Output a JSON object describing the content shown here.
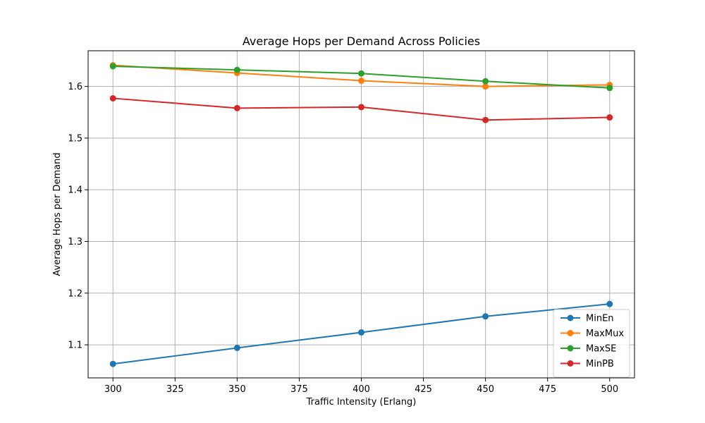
{
  "chart_data": {
    "type": "line",
    "title": "Average Hops per Demand Across Policies",
    "xlabel": "Traffic Intensity (Erlang)",
    "ylabel": "Average Hops per Demand",
    "x": [
      300,
      350,
      400,
      450,
      500
    ],
    "xlim": [
      290,
      510
    ],
    "ylim": [
      1.036,
      1.669
    ],
    "xticks": [
      300,
      325,
      350,
      375,
      400,
      425,
      450,
      475,
      500
    ],
    "yticks": [
      1.1,
      1.2,
      1.3,
      1.4,
      1.5,
      1.6
    ],
    "ytick_labels": [
      "1.1",
      "1.2",
      "1.3",
      "1.4",
      "1.5",
      "1.6"
    ],
    "grid": true,
    "legend_position": "lower-right",
    "series": [
      {
        "name": "MinEn",
        "color": "#1f77b4",
        "values": [
          1.063,
          1.094,
          1.124,
          1.155,
          1.179
        ]
      },
      {
        "name": "MaxMux",
        "color": "#ff7f0e",
        "values": [
          1.641,
          1.626,
          1.611,
          1.6,
          1.603
        ]
      },
      {
        "name": "MaxSE",
        "color": "#2ca02c",
        "values": [
          1.639,
          1.632,
          1.625,
          1.61,
          1.597
        ]
      },
      {
        "name": "MinPB",
        "color": "#d62728",
        "values": [
          1.577,
          1.558,
          1.56,
          1.535,
          1.54
        ]
      }
    ]
  }
}
